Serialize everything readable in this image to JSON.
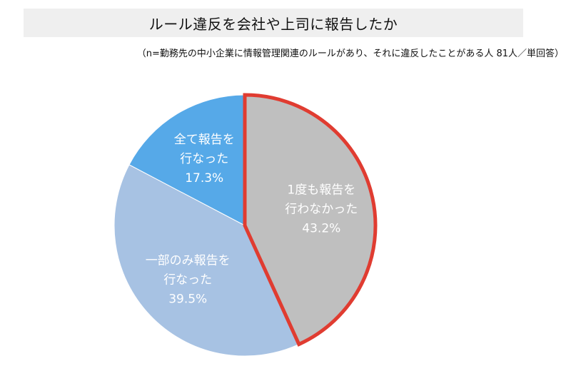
{
  "chart_data": {
    "type": "pie",
    "title": "ルール違反を会社や上司に報告したか",
    "subtitle": "（n=勤務先の中小企業に情報管理関連のルールがあり、それに違反したことがある人 81人／単回答）",
    "slices": [
      {
        "name_lines": [
          "1度も報告を",
          "行わなかった"
        ],
        "value": 43.2,
        "value_label": "43.2%",
        "color": "#bfbfbf",
        "highlight": true,
        "highlight_color": "#e03c31"
      },
      {
        "name_lines": [
          "一部のみ報告を",
          "行なった"
        ],
        "value": 39.5,
        "value_label": "39.5%",
        "color": "#a7c2e3",
        "highlight": false
      },
      {
        "name_lines": [
          "全て報告を",
          "行なった"
        ],
        "value": 17.3,
        "value_label": "17.3%",
        "color": "#56a9e8",
        "highlight": false
      }
    ],
    "start_angle": "12 o'clock",
    "direction": "clockwise",
    "legend": "none"
  }
}
